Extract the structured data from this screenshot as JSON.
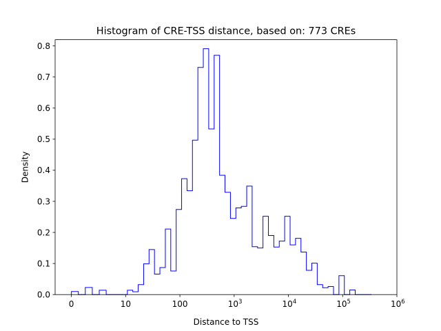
{
  "chart_data": {
    "type": "step-histogram",
    "title": "Histogram of CRE-TSS distance, based on: 773 CREs",
    "xlabel": "Distance to TSS",
    "ylabel": "Density",
    "x_scale": "symlog (linear threshold 10)",
    "xlim": [
      0,
      1000000
    ],
    "ylim": [
      0,
      0.82
    ],
    "color": "#0000ff",
    "grid": false,
    "legend": "none",
    "x_ticks": [
      {
        "value": 0,
        "base": "0",
        "exp": ""
      },
      {
        "value": 10,
        "base": "10",
        "exp": ""
      },
      {
        "value": 100,
        "base": "100",
        "exp": ""
      },
      {
        "value": 1000,
        "base": "10",
        "exp": "3"
      },
      {
        "value": 10000,
        "base": "10",
        "exp": "4"
      },
      {
        "value": 100000,
        "base": "10",
        "exp": "5"
      },
      {
        "value": 1000000,
        "base": "10",
        "exp": "6"
      }
    ],
    "y_ticks": [
      {
        "value": 0.0,
        "label": "0.0"
      },
      {
        "value": 0.1,
        "label": "0.1"
      },
      {
        "value": 0.2,
        "label": "0.2"
      },
      {
        "value": 0.3,
        "label": "0.3"
      },
      {
        "value": 0.4,
        "label": "0.4"
      },
      {
        "value": 0.5,
        "label": "0.5"
      },
      {
        "value": 0.6,
        "label": "0.6"
      },
      {
        "value": 0.7,
        "label": "0.7"
      },
      {
        "value": 0.8,
        "label": "0.8"
      }
    ],
    "bin_edges": [
      0,
      1.28,
      2.56,
      3.85,
      5.13,
      6.41,
      7.69,
      8.97,
      10.75,
      13.53,
      17.04,
      21.45,
      27.0,
      33.99,
      42.79,
      53.87,
      67.82,
      85.38,
      107.5,
      135.3,
      170.4,
      214.5,
      270.0,
      339.9,
      427.9,
      538.7,
      678.2,
      853.8,
      1075,
      1353,
      1704,
      2145,
      2700,
      3399,
      4279,
      5387,
      6782,
      8538,
      10750,
      13530,
      17040,
      21450,
      27000,
      33990,
      42790,
      53870,
      67820,
      85380,
      107500,
      135300,
      170400,
      214500,
      270000,
      339900
    ],
    "densities": [
      0.01,
      0.0,
      0.023,
      0.0,
      0.014,
      0.0,
      0.0,
      0.0,
      0.014,
      0.009,
      0.032,
      0.099,
      0.145,
      0.066,
      0.087,
      0.211,
      0.076,
      0.274,
      0.373,
      0.334,
      0.497,
      0.731,
      0.791,
      0.533,
      0.77,
      0.384,
      0.329,
      0.245,
      0.279,
      0.284,
      0.349,
      0.154,
      0.15,
      0.252,
      0.19,
      0.153,
      0.172,
      0.252,
      0.16,
      0.181,
      0.137,
      0.078,
      0.101,
      0.032,
      0.022,
      0.026,
      0.0,
      0.061,
      0.0,
      0.015,
      0.0,
      0.0,
      0.0
    ]
  }
}
